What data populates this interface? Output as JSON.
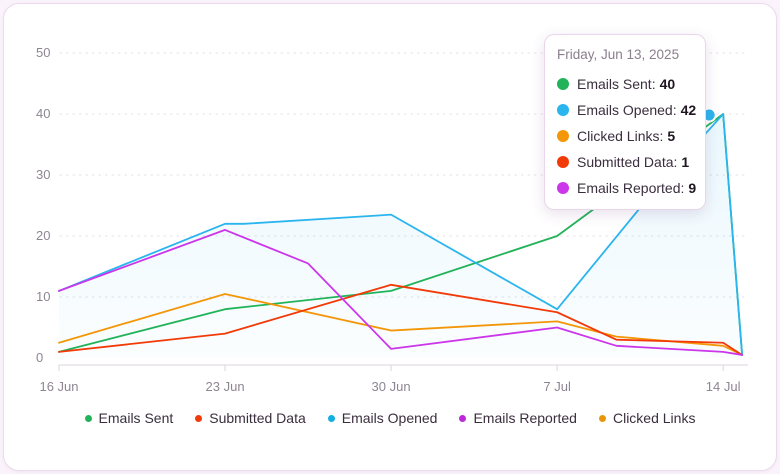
{
  "chart_data": {
    "type": "line",
    "title": "",
    "xlabel": "",
    "ylabel": "",
    "ylim": [
      0,
      50
    ],
    "yticks": [
      0,
      10,
      20,
      30,
      40,
      50
    ],
    "x_tick_labels": [
      "16 Jun",
      "23 Jun",
      "30 Jun",
      "7 Jul",
      "14 Jul"
    ],
    "x_tick_days": [
      0,
      7,
      14,
      21,
      28
    ],
    "grid": true,
    "series": [
      {
        "name": "Emails Sent",
        "color": "#22b35a",
        "points": [
          [
            0,
            1
          ],
          [
            7,
            8
          ],
          [
            14,
            11
          ],
          [
            21,
            20
          ],
          [
            28,
            40
          ],
          [
            28.8,
            0.5
          ]
        ]
      },
      {
        "name": "Emails Opened",
        "color": "#2bb5ee",
        "points": [
          [
            0,
            11
          ],
          [
            7,
            22
          ],
          [
            7.8,
            22
          ],
          [
            14,
            23.5
          ],
          [
            21,
            8
          ],
          [
            25,
            27
          ],
          [
            28,
            40
          ],
          [
            28.8,
            0.5
          ]
        ]
      },
      {
        "name": "Clicked Links",
        "color": "#f39708",
        "points": [
          [
            0,
            2.5
          ],
          [
            7,
            10.5
          ],
          [
            14,
            4.5
          ],
          [
            21,
            6
          ],
          [
            23.5,
            3.5
          ],
          [
            28,
            2
          ],
          [
            28.8,
            0.5
          ]
        ]
      },
      {
        "name": "Submitted Data",
        "color": "#f23a08",
        "points": [
          [
            0,
            1
          ],
          [
            7,
            4
          ],
          [
            14,
            12
          ],
          [
            21,
            7.5
          ],
          [
            23.5,
            3
          ],
          [
            28,
            2.5
          ],
          [
            28.8,
            0.5
          ]
        ]
      },
      {
        "name": "Emails Reported",
        "color": "#cb36ea",
        "points": [
          [
            0,
            11
          ],
          [
            7,
            21
          ],
          [
            10.5,
            15.5
          ],
          [
            14,
            1.5
          ],
          [
            21,
            5
          ],
          [
            23.5,
            2
          ],
          [
            28,
            1
          ],
          [
            28.8,
            0.5
          ]
        ]
      }
    ],
    "area_series": "Emails Opened",
    "hover_marker": {
      "series": "Emails Opened",
      "x": 28,
      "y": 40
    }
  },
  "tooltip": {
    "date": "Friday, Jun 13, 2025",
    "rows": [
      {
        "label": "Emails Sent:",
        "value": "40",
        "color": "#22b35a"
      },
      {
        "label": "Emails Opened:",
        "value": "42",
        "color": "#2bb5ee"
      },
      {
        "label": "Clicked Links:",
        "value": "5",
        "color": "#f39708"
      },
      {
        "label": "Submitted Data:",
        "value": "1",
        "color": "#f23a08"
      },
      {
        "label": "Emails Reported:",
        "value": "9",
        "color": "#cb36ea"
      }
    ]
  },
  "legend": [
    {
      "label": "Emails Sent",
      "color": "#22b35a"
    },
    {
      "label": "Submitted Data",
      "color": "#f23a08"
    },
    {
      "label": "Emails Opened",
      "color": "#14aee0"
    },
    {
      "label": "Emails Reported",
      "color": "#bb2ad8"
    },
    {
      "label": "Clicked Links",
      "color": "#e9950a"
    }
  ]
}
